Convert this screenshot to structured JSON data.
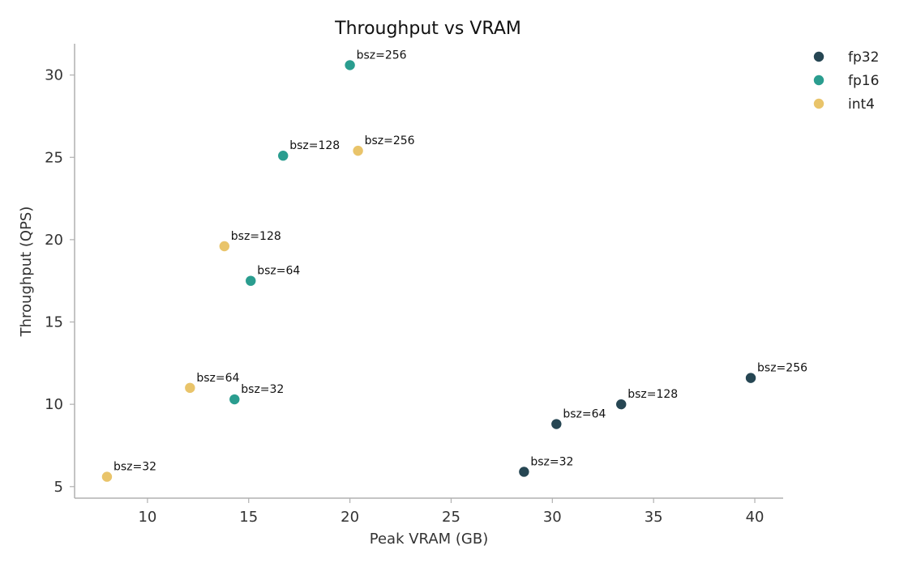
{
  "chart_data": {
    "type": "scatter",
    "title": "Throughput vs VRAM",
    "xlabel": "Peak VRAM (GB)",
    "ylabel": "Throughput (QPS)",
    "xlim": [
      6.4,
      41.4
    ],
    "ylim": [
      4.3,
      31.9
    ],
    "xticks": [
      10,
      15,
      20,
      25,
      30,
      35,
      40
    ],
    "yticks": [
      5,
      10,
      15,
      20,
      25,
      30
    ],
    "legend_position": "top-right, outside plot",
    "grid": false,
    "series": [
      {
        "name": "fp32",
        "color": "#264653",
        "points": [
          {
            "x": 28.6,
            "y": 5.9,
            "label": "bsz=32"
          },
          {
            "x": 30.2,
            "y": 8.8,
            "label": "bsz=64"
          },
          {
            "x": 33.4,
            "y": 10.0,
            "label": "bsz=128"
          },
          {
            "x": 39.8,
            "y": 11.6,
            "label": "bsz=256"
          }
        ]
      },
      {
        "name": "fp16",
        "color": "#2a9d8f",
        "points": [
          {
            "x": 14.3,
            "y": 10.3,
            "label": "bsz=32"
          },
          {
            "x": 15.1,
            "y": 17.5,
            "label": "bsz=64"
          },
          {
            "x": 16.7,
            "y": 25.1,
            "label": "bsz=128"
          },
          {
            "x": 20.0,
            "y": 30.6,
            "label": "bsz=256"
          }
        ]
      },
      {
        "name": "int4",
        "color": "#e9c46a",
        "points": [
          {
            "x": 8.0,
            "y": 5.6,
            "label": "bsz=32"
          },
          {
            "x": 12.1,
            "y": 11.0,
            "label": "bsz=64"
          },
          {
            "x": 13.8,
            "y": 19.6,
            "label": "bsz=128"
          },
          {
            "x": 20.4,
            "y": 25.4,
            "label": "bsz=256"
          }
        ]
      }
    ]
  }
}
